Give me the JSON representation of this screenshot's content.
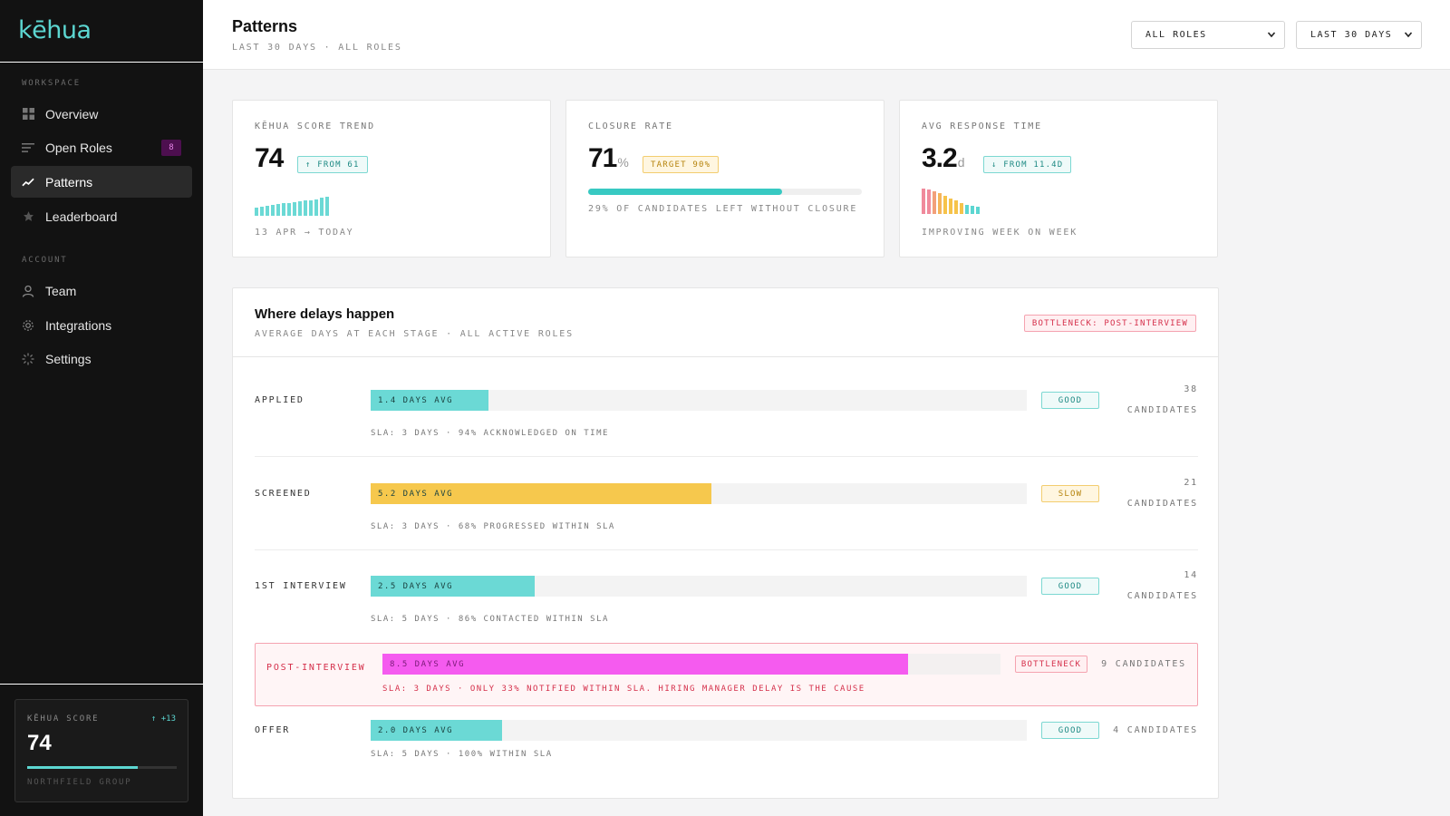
{
  "app": {
    "logo": "kēhua"
  },
  "sidebar": {
    "workspace_label": "WORKSPACE",
    "account_label": "ACCOUNT",
    "items": [
      {
        "label": "Overview",
        "icon": "grid-icon"
      },
      {
        "label": "Open Roles",
        "icon": "list-icon",
        "badge": "8"
      },
      {
        "label": "Patterns",
        "icon": "trend-icon",
        "active": true
      },
      {
        "label": "Leaderboard",
        "icon": "star-icon"
      },
      {
        "label": "Team",
        "icon": "user-icon"
      },
      {
        "label": "Integrations",
        "icon": "gear-icon"
      },
      {
        "label": "Settings",
        "icon": "loader-icon"
      }
    ],
    "score": {
      "label": "KĒHUA SCORE",
      "delta": "↑ +13",
      "value": "74",
      "progress": 0.74,
      "org": "NORTHFIELD GROUP"
    }
  },
  "header": {
    "title": "Patterns",
    "subtitle": "LAST 30 DAYS · ALL ROLES",
    "role_filter": "ALL ROLES",
    "date_filter": "LAST 30 DAYS"
  },
  "kpis": {
    "score_trend": {
      "label": "KĒHUA SCORE TREND",
      "value": "74",
      "pill": "↑ FROM 61",
      "foot": "13 APR → TODAY",
      "sparks": [
        0.4,
        0.45,
        0.5,
        0.52,
        0.55,
        0.6,
        0.62,
        0.65,
        0.7,
        0.72,
        0.75,
        0.8,
        0.85,
        0.9
      ]
    },
    "closure_rate": {
      "label": "CLOSURE RATE",
      "value": "71",
      "unit": "%",
      "pill": "TARGET 90%",
      "progress": 0.71,
      "foot": "29% OF CANDIDATES LEFT WITHOUT CLOSURE"
    },
    "response_time": {
      "label": "AVG RESPONSE TIME",
      "value": "3.2",
      "unit": "d",
      "pill": "↓ FROM 11.4D",
      "foot": "IMPROVING WEEK ON WEEK",
      "sparks": [
        {
          "h": 1.0,
          "c": "#f08a9c"
        },
        {
          "h": 0.95,
          "c": "#f08a9c"
        },
        {
          "h": 0.9,
          "c": "#f2a07a"
        },
        {
          "h": 0.82,
          "c": "#f5b55c"
        },
        {
          "h": 0.72,
          "c": "#f6c34a"
        },
        {
          "h": 0.62,
          "c": "#f6c34a"
        },
        {
          "h": 0.52,
          "c": "#f6c34a"
        },
        {
          "h": 0.42,
          "c": "#f6c34a"
        },
        {
          "h": 0.36,
          "c": "#5cd6d1"
        },
        {
          "h": 0.32,
          "c": "#5cd6d1"
        },
        {
          "h": 0.3,
          "c": "#5cd6d1"
        }
      ]
    }
  },
  "delays": {
    "title": "Where delays happen",
    "subtitle": "AVERAGE DAYS AT EACH STAGE · ALL ACTIVE ROLES",
    "tag": "BOTTLENECK: POST-INTERVIEW",
    "stages": [
      {
        "name": "APPLIED",
        "bar": "1.4 DAYS AVG",
        "fraction": 0.18,
        "color": "#6bd9d5",
        "status": "GOOD",
        "count_num": "38",
        "count_label": "CANDIDATES",
        "sla": "SLA: 3 DAYS · 94% ACKNOWLEDGED ON TIME"
      },
      {
        "name": "SCREENED",
        "bar": "5.2 DAYS AVG",
        "fraction": 0.52,
        "color": "#f6c84d",
        "status": "SLOW",
        "count_num": "21",
        "count_label": "CANDIDATES",
        "sla": "SLA: 3 DAYS · 68% PROGRESSED WITHIN SLA"
      },
      {
        "name": "1ST INTERVIEW",
        "bar": "2.5 DAYS AVG",
        "fraction": 0.25,
        "color": "#6bd9d5",
        "status": "GOOD",
        "count_num": "14",
        "count_label": "CANDIDATES",
        "sla": "SLA: 5 DAYS · 86% CONTACTED WITHIN SLA"
      },
      {
        "name": "POST-INTERVIEW",
        "bar": "8.5 DAYS AVG",
        "fraction": 0.85,
        "color": "#f55bef",
        "status": "BOTTLENECK",
        "count": "9 CANDIDATES",
        "sla": "SLA: 3 DAYS · ONLY 33% NOTIFIED WITHIN SLA. HIRING MANAGER DELAY IS THE CAUSE"
      },
      {
        "name": "OFFER",
        "bar": "2.0 DAYS AVG",
        "fraction": 0.2,
        "color": "#6bd9d5",
        "status": "GOOD",
        "count": "4 CANDIDATES",
        "sla": "SLA: 5 DAYS · 100% WITHIN SLA"
      }
    ]
  },
  "colors": {
    "accent": "#5cd6d1",
    "magenta": "#f55bef",
    "amber": "#f6c84d",
    "danger": "#d5304b"
  }
}
